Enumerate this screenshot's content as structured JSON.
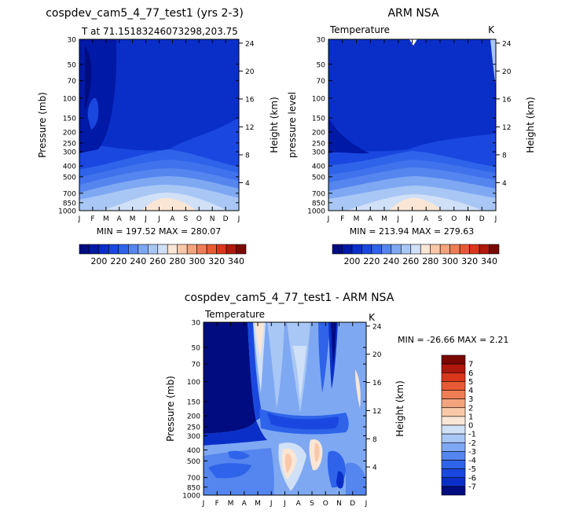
{
  "panels": {
    "model": {
      "title": "cospdev_cam5_4_77_test1 (yrs 2-3)",
      "subtitle_left": "T at 71.15183246073298,203.75",
      "subtitle_right": "",
      "ylabel_left": "Pressure (mb)",
      "ylabel_right": "Height (km)",
      "minmax": "MIN = 197.52  MAX = 280.07"
    },
    "obs": {
      "title": "ARM NSA",
      "subtitle_left": "Temperature",
      "subtitle_right": "K",
      "ylabel_left": "pressure level",
      "ylabel_right": "Height (km)",
      "minmax": "MIN = 213.94  MAX = 279.63"
    },
    "diff": {
      "title": "cospdev_cam5_4_77_test1 - ARM NSA",
      "subtitle_left": "Temperature",
      "subtitle_right": "K",
      "ylabel_left": "Pressure (mb)",
      "ylabel_right": "Height (km)",
      "minmax": "MIN = -26.66 MAX =   2.21"
    }
  },
  "chart_data": [
    {
      "type": "heatmap",
      "title": "cospdev_cam5_4_77_test1 (yrs 2-3)",
      "subtitle": "T at 71.15183246073298,203.75",
      "xlabel": "",
      "ylabel": "Pressure (mb)",
      "ylabel_right": "Height (km)",
      "x_ticks": [
        "J",
        "F",
        "M",
        "A",
        "M",
        "J",
        "J",
        "A",
        "S",
        "O",
        "N",
        "D",
        "J"
      ],
      "y_ticks": [
        "30",
        "50",
        "70",
        "100",
        "150",
        "200",
        "250",
        "300",
        "400",
        "500",
        "700",
        "850",
        "1000"
      ],
      "y_right_ticks": [
        "24",
        "20",
        "16",
        "12",
        "8",
        "4"
      ],
      "ylim": [
        30,
        1000
      ],
      "min": 197.52,
      "max": 280.07,
      "levels": [
        "200",
        "220",
        "240",
        "260",
        "280",
        "300",
        "320",
        "340"
      ]
    },
    {
      "type": "heatmap",
      "title": "ARM NSA",
      "subtitle": "Temperature",
      "units": "K",
      "xlabel": "",
      "ylabel": "pressure level",
      "ylabel_right": "Height (km)",
      "x_ticks": [
        "J",
        "F",
        "M",
        "A",
        "M",
        "J",
        "J",
        "A",
        "S",
        "O",
        "N",
        "D",
        "J"
      ],
      "y_ticks": [
        "30",
        "50",
        "70",
        "100",
        "150",
        "200",
        "250",
        "300",
        "400",
        "500",
        "700",
        "850",
        "1000"
      ],
      "y_right_ticks": [
        "24",
        "20",
        "16",
        "12",
        "8",
        "4"
      ],
      "ylim": [
        30,
        1000
      ],
      "min": 213.94,
      "max": 279.63,
      "levels": [
        "200",
        "220",
        "240",
        "260",
        "280",
        "300",
        "320",
        "340"
      ]
    },
    {
      "type": "heatmap",
      "title": "cospdev_cam5_4_77_test1 - ARM NSA",
      "subtitle": "Temperature",
      "units": "K",
      "xlabel": "",
      "ylabel": "Pressure (mb)",
      "ylabel_right": "Height (km)",
      "x_ticks": [
        "J",
        "F",
        "M",
        "A",
        "M",
        "J",
        "J",
        "A",
        "S",
        "O",
        "N",
        "D",
        "J"
      ],
      "y_ticks": [
        "30",
        "50",
        "70",
        "100",
        "150",
        "200",
        "250",
        "300",
        "400",
        "500",
        "700",
        "850",
        "1000"
      ],
      "y_right_ticks": [
        "24",
        "20",
        "16",
        "12",
        "8",
        "4"
      ],
      "ylim": [
        30,
        1000
      ],
      "min": -26.66,
      "max": 2.21,
      "levels": [
        "7",
        "6",
        "5",
        "4",
        "3",
        "2",
        "1",
        "0",
        "-1",
        "-2",
        "-3",
        "-4",
        "-5",
        "-6",
        "-7"
      ]
    }
  ],
  "colorbar_top": {
    "labels": [
      "200",
      "220",
      "240",
      "260",
      "280",
      "300",
      "320",
      "340"
    ],
    "colors": [
      "#000c80",
      "#0019a6",
      "#0a2fc9",
      "#1a47e0",
      "#2e63ea",
      "#5585ee",
      "#7ea8f2",
      "#a9c7f5",
      "#d0e0f7",
      "#fbe6d6",
      "#f8c8a8",
      "#f3a47c",
      "#ee7d55",
      "#e85a33",
      "#d9361b",
      "#b0180c",
      "#7a0700"
    ]
  },
  "colorbar_diff": {
    "labels": [
      "7",
      "6",
      "5",
      "4",
      "3",
      "2",
      "1",
      "0",
      "-1",
      "-2",
      "-3",
      "-4",
      "-5",
      "-6",
      "-7"
    ],
    "colors": [
      "#7a0700",
      "#b0180c",
      "#d9361b",
      "#e85a33",
      "#ee7d55",
      "#f3a47c",
      "#f8c8a8",
      "#fbe6d6",
      "#d0e0f7",
      "#a9c7f5",
      "#7ea8f2",
      "#5585ee",
      "#2e63ea",
      "#1a47e0",
      "#0a2fc9",
      "#000c80"
    ]
  }
}
